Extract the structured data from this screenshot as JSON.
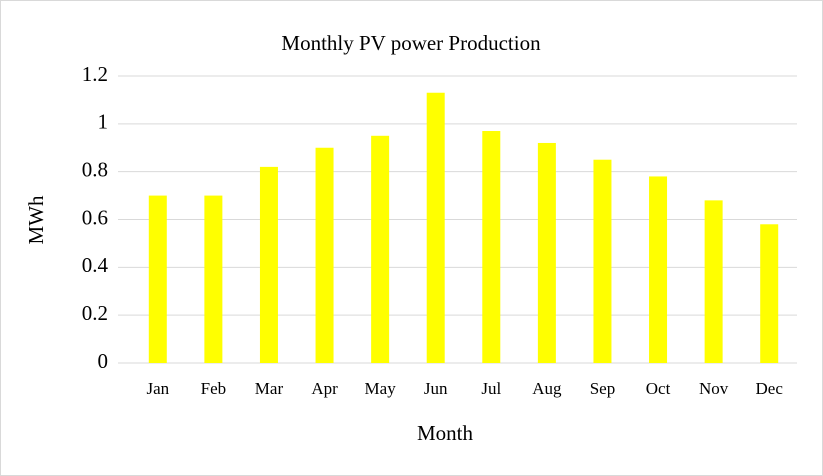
{
  "chart_data": {
    "type": "bar",
    "title": "Monthly PV power Production",
    "x_label": "Month",
    "y_label": "MWh",
    "categories": [
      "Jan",
      "Feb",
      "Mar",
      "Apr",
      "May",
      "Jun",
      "Jul",
      "Aug",
      "Sep",
      "Oct",
      "Nov",
      "Dec"
    ],
    "values": [
      0.7,
      0.7,
      0.82,
      0.9,
      0.95,
      1.13,
      0.97,
      0.92,
      0.85,
      0.78,
      0.68,
      0.58
    ],
    "color": "#ffff00",
    "ylim": [
      0,
      1.2
    ],
    "yticks": [
      0,
      0.2,
      0.4,
      0.6,
      0.8,
      1,
      1.2
    ],
    "grid": true
  }
}
